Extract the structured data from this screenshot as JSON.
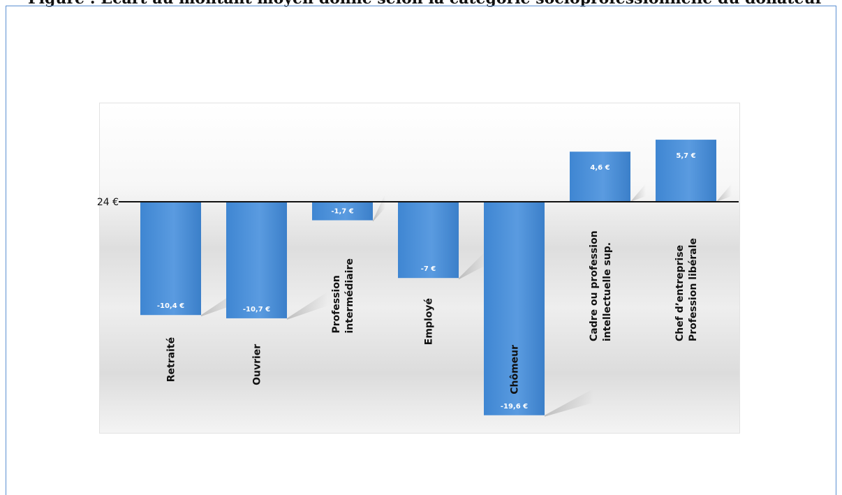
{
  "page": {
    "title": "Figure : Écart au montant moyen donné selon la catégorie socioprofessionnelle du donateur"
  },
  "chart_data": {
    "type": "bar",
    "baseline_label": "24 €",
    "categories": [
      [
        "Retraité"
      ],
      [
        "Ouvrier"
      ],
      [
        "Profession",
        "intermédiaire"
      ],
      [
        "Employé"
      ],
      [
        "Chômeur"
      ],
      [
        "Cadre ou profession",
        "intellectuelle sup."
      ],
      [
        "Chef d’entreprise",
        "Profession libérale"
      ]
    ],
    "values": [
      -10.4,
      -10.7,
      -1.7,
      -7,
      -19.6,
      4.6,
      5.7
    ],
    "value_labels": [
      "-10,4 €",
      "-10,7 €",
      "-1,7 €",
      "-7 €",
      "-19,6 €",
      "4,6 €",
      "5,7 €"
    ],
    "bar_color": "#4a8fd6",
    "grid": false,
    "legend": "none"
  }
}
